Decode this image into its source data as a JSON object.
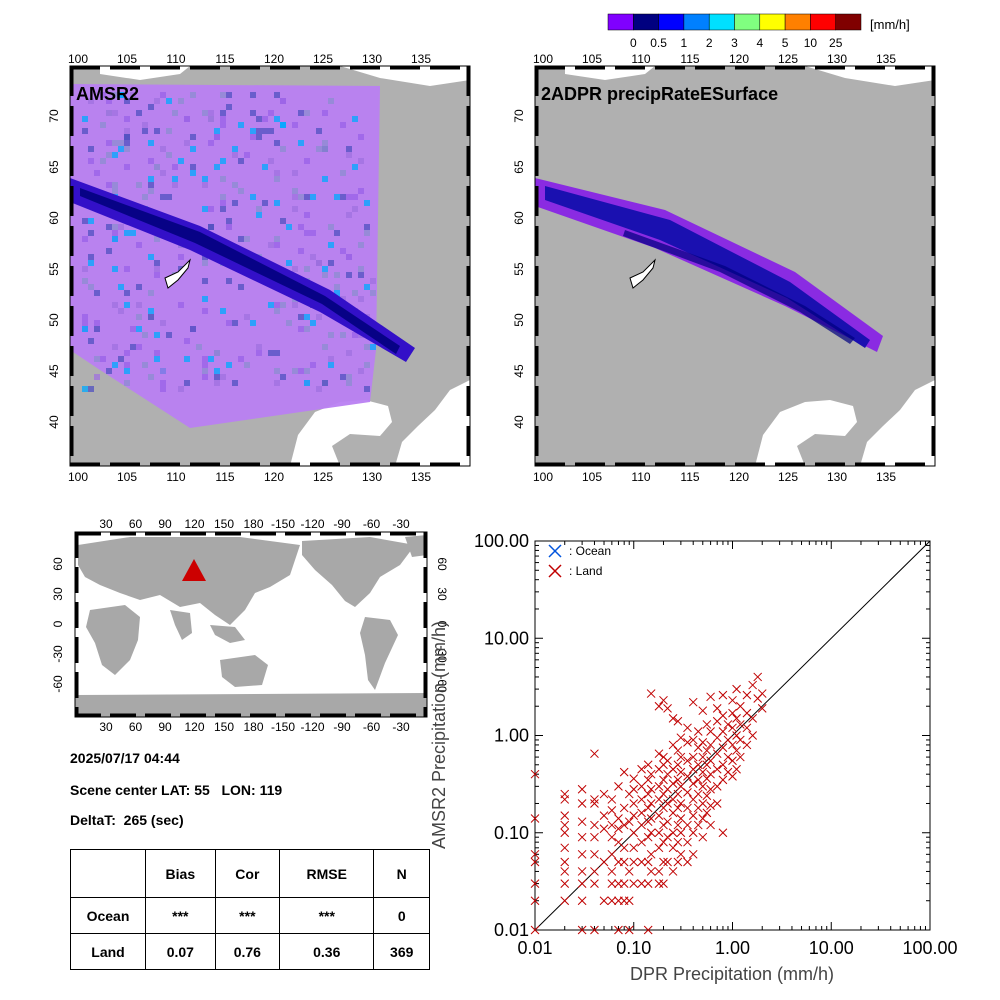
{
  "colorbar": {
    "colors": [
      "#8000ff",
      "#000080",
      "#0000ff",
      "#0080ff",
      "#00e0ff",
      "#80ff80",
      "#ffff00",
      "#ff8000",
      "#ff0000",
      "#800000"
    ],
    "labels": [
      "0",
      "0.5",
      "1",
      "2",
      "3",
      "4",
      "5",
      "10",
      "25"
    ],
    "unit": "[mm/h]"
  },
  "maps": [
    {
      "title": "AMSR2",
      "lon_ticks": [
        "100",
        "105",
        "110",
        "115",
        "120",
        "125",
        "130",
        "135"
      ],
      "lat_ticks": [
        "70",
        "65",
        "60",
        "55",
        "50",
        "45",
        "40"
      ]
    },
    {
      "title": "2ADPR precipRateESurface",
      "lon_ticks": [
        "100",
        "105",
        "110",
        "115",
        "120",
        "125",
        "130",
        "135"
      ],
      "lat_ticks": [
        "70",
        "65",
        "60",
        "55",
        "50",
        "45",
        "40"
      ]
    }
  ],
  "world_map": {
    "lon_ticks": [
      "30",
      "60",
      "90",
      "120",
      "150",
      "180",
      "-150",
      "-120",
      "-90",
      "-60",
      "-30"
    ],
    "lat_ticks": [
      "60",
      "30",
      "0",
      "-30",
      "-60"
    ],
    "marker_color": "#cc0000"
  },
  "info": {
    "datetime": "2025/07/17 04:44",
    "scene_center": "Scene center LAT: 55   LON: 119",
    "delta_t": "DeltaT:  265 (sec)"
  },
  "stats_table": {
    "headers": [
      "",
      "Bias",
      "Cor",
      "RMSE",
      "N"
    ],
    "rows": [
      [
        "Ocean",
        "***",
        "***",
        "***",
        "0"
      ],
      [
        "Land",
        "0.07",
        "0.76",
        "0.36",
        "369"
      ]
    ]
  },
  "chart_data": {
    "type": "scatter",
    "xlabel": "DPR Precipitation (mm/h)",
    "ylabel": "AMSR2 Precipitation (mm/h)",
    "xscale": "log",
    "yscale": "log",
    "xlim": [
      0.01,
      100
    ],
    "ylim": [
      0.01,
      100
    ],
    "x_tick_labels": [
      "0.01",
      "0.10",
      "1.00",
      "10.00",
      "100.00"
    ],
    "y_tick_labels": [
      "0.01",
      "0.10",
      "1.00",
      "10.00",
      "100.00"
    ],
    "legend": [
      {
        "name": ": Ocean",
        "color": "#0055dd"
      },
      {
        "name": ": Land",
        "color": "#c00000"
      }
    ],
    "legend_position": "top-left",
    "one_to_one_line": true,
    "series": [
      {
        "name": ": Land",
        "color": "#c00000",
        "points": [
          [
            0.01,
            0.4
          ],
          [
            0.01,
            0.14
          ],
          [
            0.01,
            0.06
          ],
          [
            0.01,
            0.05
          ],
          [
            0.01,
            0.03
          ],
          [
            0.01,
            0.02
          ],
          [
            0.01,
            0.01
          ],
          [
            0.02,
            0.25
          ],
          [
            0.02,
            0.22
          ],
          [
            0.02,
            0.15
          ],
          [
            0.02,
            0.12
          ],
          [
            0.02,
            0.1
          ],
          [
            0.02,
            0.07
          ],
          [
            0.02,
            0.05
          ],
          [
            0.02,
            0.04
          ],
          [
            0.02,
            0.03
          ],
          [
            0.02,
            0.02
          ],
          [
            0.03,
            0.28
          ],
          [
            0.03,
            0.2
          ],
          [
            0.03,
            0.13
          ],
          [
            0.03,
            0.09
          ],
          [
            0.03,
            0.06
          ],
          [
            0.03,
            0.04
          ],
          [
            0.03,
            0.03
          ],
          [
            0.03,
            0.02
          ],
          [
            0.03,
            0.01
          ],
          [
            0.04,
            0.65
          ],
          [
            0.04,
            0.22
          ],
          [
            0.04,
            0.2
          ],
          [
            0.04,
            0.12
          ],
          [
            0.04,
            0.09
          ],
          [
            0.04,
            0.06
          ],
          [
            0.04,
            0.04
          ],
          [
            0.04,
            0.03
          ],
          [
            0.04,
            0.01
          ],
          [
            0.05,
            0.25
          ],
          [
            0.05,
            0.15
          ],
          [
            0.05,
            0.11
          ],
          [
            0.05,
            0.05
          ],
          [
            0.05,
            0.02
          ],
          [
            0.06,
            0.22
          ],
          [
            0.06,
            0.17
          ],
          [
            0.06,
            0.12
          ],
          [
            0.06,
            0.09
          ],
          [
            0.06,
            0.06
          ],
          [
            0.06,
            0.04
          ],
          [
            0.06,
            0.03
          ],
          [
            0.06,
            0.02
          ],
          [
            0.07,
            0.3
          ],
          [
            0.07,
            0.14
          ],
          [
            0.07,
            0.11
          ],
          [
            0.07,
            0.08
          ],
          [
            0.07,
            0.05
          ],
          [
            0.07,
            0.03
          ],
          [
            0.07,
            0.02
          ],
          [
            0.07,
            0.01
          ],
          [
            0.08,
            0.42
          ],
          [
            0.08,
            0.18
          ],
          [
            0.08,
            0.12
          ],
          [
            0.08,
            0.07
          ],
          [
            0.08,
            0.05
          ],
          [
            0.08,
            0.03
          ],
          [
            0.08,
            0.02
          ],
          [
            0.09,
            0.25
          ],
          [
            0.09,
            0.13
          ],
          [
            0.09,
            0.04
          ],
          [
            0.09,
            0.02
          ],
          [
            0.09,
            0.01
          ],
          [
            0.1,
            0.36
          ],
          [
            0.1,
            0.28
          ],
          [
            0.1,
            0.2
          ],
          [
            0.1,
            0.15
          ],
          [
            0.1,
            0.1
          ],
          [
            0.1,
            0.07
          ],
          [
            0.1,
            0.05
          ],
          [
            0.1,
            0.03
          ],
          [
            0.12,
            0.45
          ],
          [
            0.12,
            0.3
          ],
          [
            0.12,
            0.22
          ],
          [
            0.12,
            0.16
          ],
          [
            0.12,
            0.12
          ],
          [
            0.12,
            0.08
          ],
          [
            0.12,
            0.05
          ],
          [
            0.12,
            0.03
          ],
          [
            0.14,
            0.5
          ],
          [
            0.14,
            0.35
          ],
          [
            0.14,
            0.25
          ],
          [
            0.14,
            0.18
          ],
          [
            0.14,
            0.13
          ],
          [
            0.14,
            0.09
          ],
          [
            0.14,
            0.05
          ],
          [
            0.14,
            0.03
          ],
          [
            0.14,
            0.01
          ],
          [
            0.15,
            2.7
          ],
          [
            0.15,
            0.4
          ],
          [
            0.15,
            0.28
          ],
          [
            0.15,
            0.2
          ],
          [
            0.15,
            0.14
          ],
          [
            0.15,
            0.1
          ],
          [
            0.15,
            0.06
          ],
          [
            0.15,
            0.04
          ],
          [
            0.18,
            2.0
          ],
          [
            0.18,
            0.65
          ],
          [
            0.18,
            0.45
          ],
          [
            0.18,
            0.3
          ],
          [
            0.18,
            0.22
          ],
          [
            0.18,
            0.15
          ],
          [
            0.18,
            0.1
          ],
          [
            0.18,
            0.07
          ],
          [
            0.18,
            0.04
          ],
          [
            0.18,
            0.03
          ],
          [
            0.2,
            2.3
          ],
          [
            0.2,
            0.6
          ],
          [
            0.2,
            0.5
          ],
          [
            0.2,
            0.35
          ],
          [
            0.2,
            0.25
          ],
          [
            0.2,
            0.18
          ],
          [
            0.2,
            0.12
          ],
          [
            0.2,
            0.08
          ],
          [
            0.2,
            0.05
          ],
          [
            0.2,
            0.03
          ],
          [
            0.22,
            1.9
          ],
          [
            0.22,
            0.55
          ],
          [
            0.22,
            0.4
          ],
          [
            0.22,
            0.28
          ],
          [
            0.22,
            0.2
          ],
          [
            0.22,
            0.13
          ],
          [
            0.22,
            0.09
          ],
          [
            0.22,
            0.05
          ],
          [
            0.25,
            1.5
          ],
          [
            0.25,
            0.8
          ],
          [
            0.25,
            0.45
          ],
          [
            0.25,
            0.32
          ],
          [
            0.25,
            0.22
          ],
          [
            0.25,
            0.16
          ],
          [
            0.25,
            0.1
          ],
          [
            0.25,
            0.07
          ],
          [
            0.25,
            0.04
          ],
          [
            0.28,
            1.4
          ],
          [
            0.28,
            0.7
          ],
          [
            0.28,
            0.5
          ],
          [
            0.28,
            0.35
          ],
          [
            0.28,
            0.25
          ],
          [
            0.28,
            0.18
          ],
          [
            0.28,
            0.12
          ],
          [
            0.28,
            0.08
          ],
          [
            0.28,
            0.05
          ],
          [
            0.3,
            0.95
          ],
          [
            0.3,
            0.6
          ],
          [
            0.3,
            0.42
          ],
          [
            0.3,
            0.3
          ],
          [
            0.3,
            0.2
          ],
          [
            0.3,
            0.14
          ],
          [
            0.3,
            0.1
          ],
          [
            0.3,
            0.06
          ],
          [
            0.35,
            1.2
          ],
          [
            0.35,
            0.85
          ],
          [
            0.35,
            0.55
          ],
          [
            0.35,
            0.38
          ],
          [
            0.35,
            0.26
          ],
          [
            0.35,
            0.18
          ],
          [
            0.35,
            0.12
          ],
          [
            0.35,
            0.08
          ],
          [
            0.35,
            0.05
          ],
          [
            0.4,
            2.2
          ],
          [
            0.4,
            0.9
          ],
          [
            0.4,
            0.6
          ],
          [
            0.4,
            0.45
          ],
          [
            0.4,
            0.32
          ],
          [
            0.4,
            0.22
          ],
          [
            0.4,
            0.15
          ],
          [
            0.4,
            0.1
          ],
          [
            0.4,
            0.06
          ],
          [
            0.45,
            1.1
          ],
          [
            0.45,
            0.75
          ],
          [
            0.45,
            0.5
          ],
          [
            0.45,
            0.35
          ],
          [
            0.45,
            0.25
          ],
          [
            0.45,
            0.18
          ],
          [
            0.45,
            0.12
          ],
          [
            0.5,
            1.8
          ],
          [
            0.5,
            0.85
          ],
          [
            0.5,
            0.6
          ],
          [
            0.5,
            0.42
          ],
          [
            0.5,
            0.3
          ],
          [
            0.5,
            0.2
          ],
          [
            0.5,
            0.14
          ],
          [
            0.5,
            0.09
          ],
          [
            0.55,
            1.3
          ],
          [
            0.55,
            0.7
          ],
          [
            0.55,
            0.5
          ],
          [
            0.55,
            0.36
          ],
          [
            0.55,
            0.24
          ],
          [
            0.55,
            0.16
          ],
          [
            0.6,
            2.5
          ],
          [
            0.6,
            1.1
          ],
          [
            0.6,
            0.8
          ],
          [
            0.6,
            0.55
          ],
          [
            0.6,
            0.4
          ],
          [
            0.6,
            0.28
          ],
          [
            0.6,
            0.19
          ],
          [
            0.6,
            0.12
          ],
          [
            0.7,
            1.9
          ],
          [
            0.7,
            1.4
          ],
          [
            0.7,
            0.95
          ],
          [
            0.7,
            0.65
          ],
          [
            0.7,
            0.45
          ],
          [
            0.7,
            0.3
          ],
          [
            0.7,
            0.2
          ],
          [
            0.8,
            2.6
          ],
          [
            0.8,
            1.6
          ],
          [
            0.8,
            1.1
          ],
          [
            0.8,
            0.75
          ],
          [
            0.8,
            0.5
          ],
          [
            0.8,
            0.35
          ],
          [
            0.8,
            0.1
          ],
          [
            0.9,
            1.3
          ],
          [
            0.9,
            0.9
          ],
          [
            0.9,
            0.6
          ],
          [
            0.9,
            0.42
          ],
          [
            1.0,
            2.3
          ],
          [
            1.0,
            1.7
          ],
          [
            1.0,
            1.2
          ],
          [
            1.0,
            0.8
          ],
          [
            1.0,
            0.55
          ],
          [
            1.0,
            0.38
          ],
          [
            1.1,
            3.0
          ],
          [
            1.1,
            1.5
          ],
          [
            1.1,
            1.0
          ],
          [
            1.1,
            0.7
          ],
          [
            1.1,
            0.45
          ],
          [
            1.2,
            2.0
          ],
          [
            1.2,
            1.3
          ],
          [
            1.2,
            0.9
          ],
          [
            1.2,
            0.6
          ],
          [
            1.4,
            2.6
          ],
          [
            1.4,
            1.7
          ],
          [
            1.4,
            1.2
          ],
          [
            1.4,
            0.8
          ],
          [
            1.6,
            3.3
          ],
          [
            1.6,
            1.5
          ],
          [
            1.6,
            1.0
          ],
          [
            1.8,
            4.0
          ],
          [
            1.8,
            2.4
          ],
          [
            2.0,
            2.7
          ],
          [
            2.0,
            1.9
          ]
        ]
      }
    ]
  }
}
